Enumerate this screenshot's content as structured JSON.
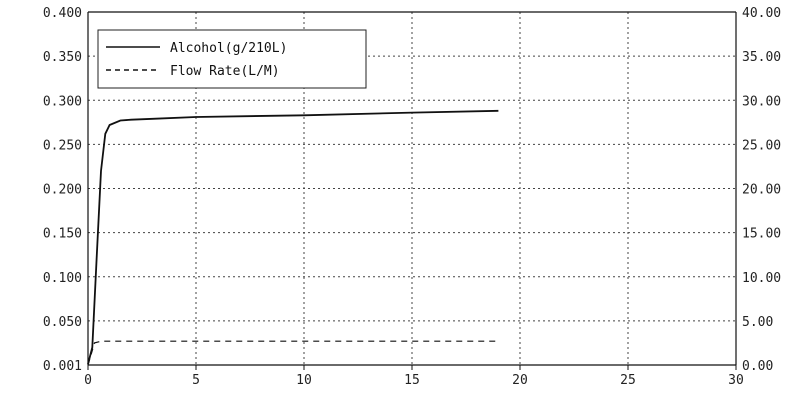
{
  "chart_data": {
    "type": "line",
    "x": [
      0,
      0.2,
      0.4,
      0.6,
      0.8,
      1.0,
      1.5,
      2,
      3,
      5,
      10,
      15,
      20,
      25,
      30
    ],
    "x_ticks": [
      "0",
      "5",
      "10",
      "15",
      "20",
      "25",
      "30"
    ],
    "xlim": [
      0,
      30
    ],
    "y_left_ticks": [
      "0.001",
      "0.050",
      "0.100",
      "0.150",
      "0.200",
      "0.250",
      "0.300",
      "0.350",
      "0.400"
    ],
    "ylim_left": [
      0,
      0.4
    ],
    "y_right_ticks": [
      "0.00",
      "5.00",
      "10.00",
      "15.00",
      "20.00",
      "25.00",
      "30.00",
      "35.00",
      "40.00"
    ],
    "ylim_right": [
      0,
      40
    ],
    "grid": true,
    "legend_position": "top-left",
    "series": [
      {
        "name": "Alcohol(g/210L)",
        "axis": "left",
        "style": "solid",
        "color": "#111111",
        "x": [
          0,
          0.2,
          0.4,
          0.6,
          0.8,
          1.0,
          1.5,
          2,
          3,
          5,
          10,
          15,
          19
        ],
        "values": [
          0.001,
          0.02,
          0.12,
          0.22,
          0.262,
          0.272,
          0.277,
          0.278,
          0.279,
          0.281,
          0.283,
          0.286,
          0.288
        ]
      },
      {
        "name": "Flow Rate(L/M)",
        "axis": "right",
        "style": "dashed",
        "color": "#111111",
        "x": [
          0,
          0.3,
          0.6,
          1,
          5,
          10,
          15,
          19
        ],
        "values": [
          0,
          2.5,
          2.7,
          2.7,
          2.7,
          2.7,
          2.7,
          2.7
        ]
      }
    ]
  }
}
